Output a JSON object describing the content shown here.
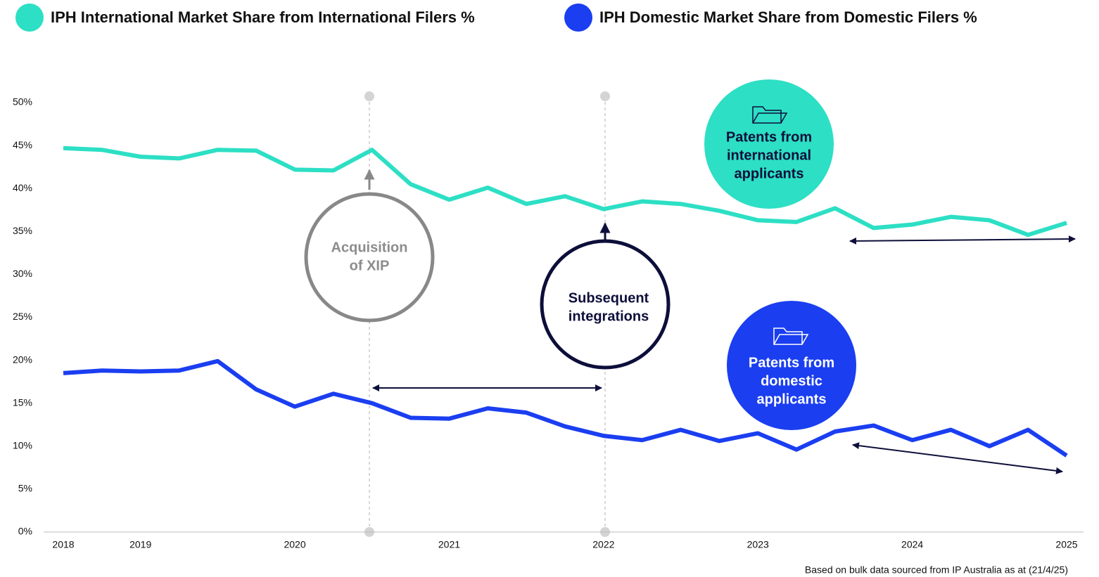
{
  "chart_data": {
    "type": "line",
    "categories": [
      "2018",
      null,
      "2019",
      null,
      null,
      null,
      "2020",
      null,
      null,
      null,
      "2021",
      null,
      null,
      null,
      "2022",
      null,
      null,
      null,
      "2023",
      null,
      null,
      null,
      "2024",
      null,
      null,
      null,
      "2025"
    ],
    "series": [
      {
        "name": "IPH International Market Share from International Filers %",
        "color": "#2ddfc4",
        "values": [
          44.7,
          44.5,
          43.7,
          43.5,
          44.5,
          44.4,
          42.2,
          42.1,
          44.5,
          40.5,
          38.7,
          40.1,
          38.2,
          39.1,
          37.6,
          38.5,
          38.2,
          37.4,
          36.3,
          36.1,
          37.7,
          35.4,
          35.8,
          36.7,
          36.3,
          34.6,
          36.0
        ]
      },
      {
        "name": "IPH Domestic Market Share from Domestic Filers %",
        "color": "#1a3ef0",
        "values": [
          18.5,
          18.8,
          18.7,
          18.8,
          19.9,
          16.6,
          14.6,
          16.1,
          15.0,
          13.3,
          13.2,
          14.4,
          13.9,
          12.3,
          11.2,
          10.7,
          11.9,
          10.6,
          11.5,
          9.6,
          11.7,
          12.4,
          10.7,
          11.9,
          10.0,
          11.9,
          8.9
        ]
      }
    ],
    "ylim": [
      0,
      50
    ],
    "yticks": [
      {
        "value": 0,
        "label": "0%"
      },
      {
        "value": 5,
        "label": "5%"
      },
      {
        "value": 10,
        "label": "10%"
      },
      {
        "value": 15,
        "label": "15%"
      },
      {
        "value": 20,
        "label": "20%"
      },
      {
        "value": 25,
        "label": "25%"
      },
      {
        "value": 30,
        "label": "30%"
      },
      {
        "value": 35,
        "label": "35%"
      },
      {
        "value": 40,
        "label": "40%"
      },
      {
        "value": 45,
        "label": "45%"
      },
      {
        "value": 50,
        "label": "50%"
      }
    ],
    "grid": false,
    "annotations": {
      "acquisition": [
        "Acquisition",
        "of XIP"
      ],
      "integrations": [
        "Subsequent",
        "integrations"
      ],
      "international": [
        "Patents from",
        "international",
        "applicants"
      ],
      "domestic": [
        "Patents from",
        "domestic",
        "applicants"
      ]
    },
    "source": "Based on bulk data sourced from IP Australia as at (21/4/25)"
  }
}
